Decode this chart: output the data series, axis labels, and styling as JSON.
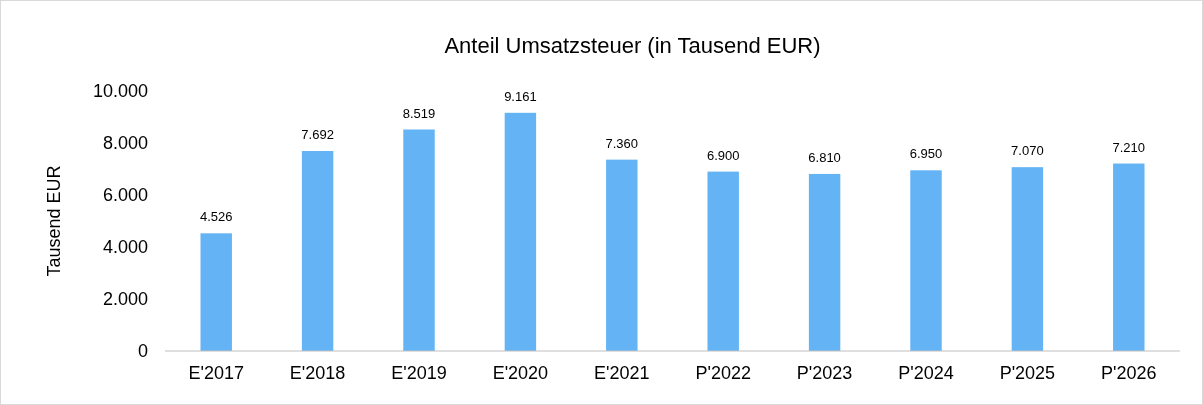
{
  "chart_data": {
    "type": "bar",
    "title": "Anteil Umsatzsteuer (in Tausend EUR)",
    "ylabel": "Tausend EUR",
    "categories": [
      "E'2017",
      "E'2018",
      "E'2019",
      "E'2020",
      "E'2021",
      "P'2022",
      "P'2023",
      "P'2024",
      "P'2025",
      "P'2026"
    ],
    "values": [
      4526,
      7692,
      8519,
      9161,
      7360,
      6900,
      6810,
      6950,
      7070,
      7210
    ],
    "value_labels": [
      "4.526",
      "7.692",
      "8.519",
      "9.161",
      "7.360",
      "6.900",
      "6.810",
      "6.950",
      "7.070",
      "7.210"
    ],
    "color": "#63b3f5",
    "ylim": [
      0,
      10000
    ],
    "yticks": [
      {
        "value": 0,
        "label": "0"
      },
      {
        "value": 2000,
        "label": "2.000"
      },
      {
        "value": 4000,
        "label": "4.000"
      },
      {
        "value": 6000,
        "label": "6.000"
      },
      {
        "value": 8000,
        "label": "8.000"
      },
      {
        "value": 10000,
        "label": "10.000"
      }
    ],
    "grid": false
  }
}
